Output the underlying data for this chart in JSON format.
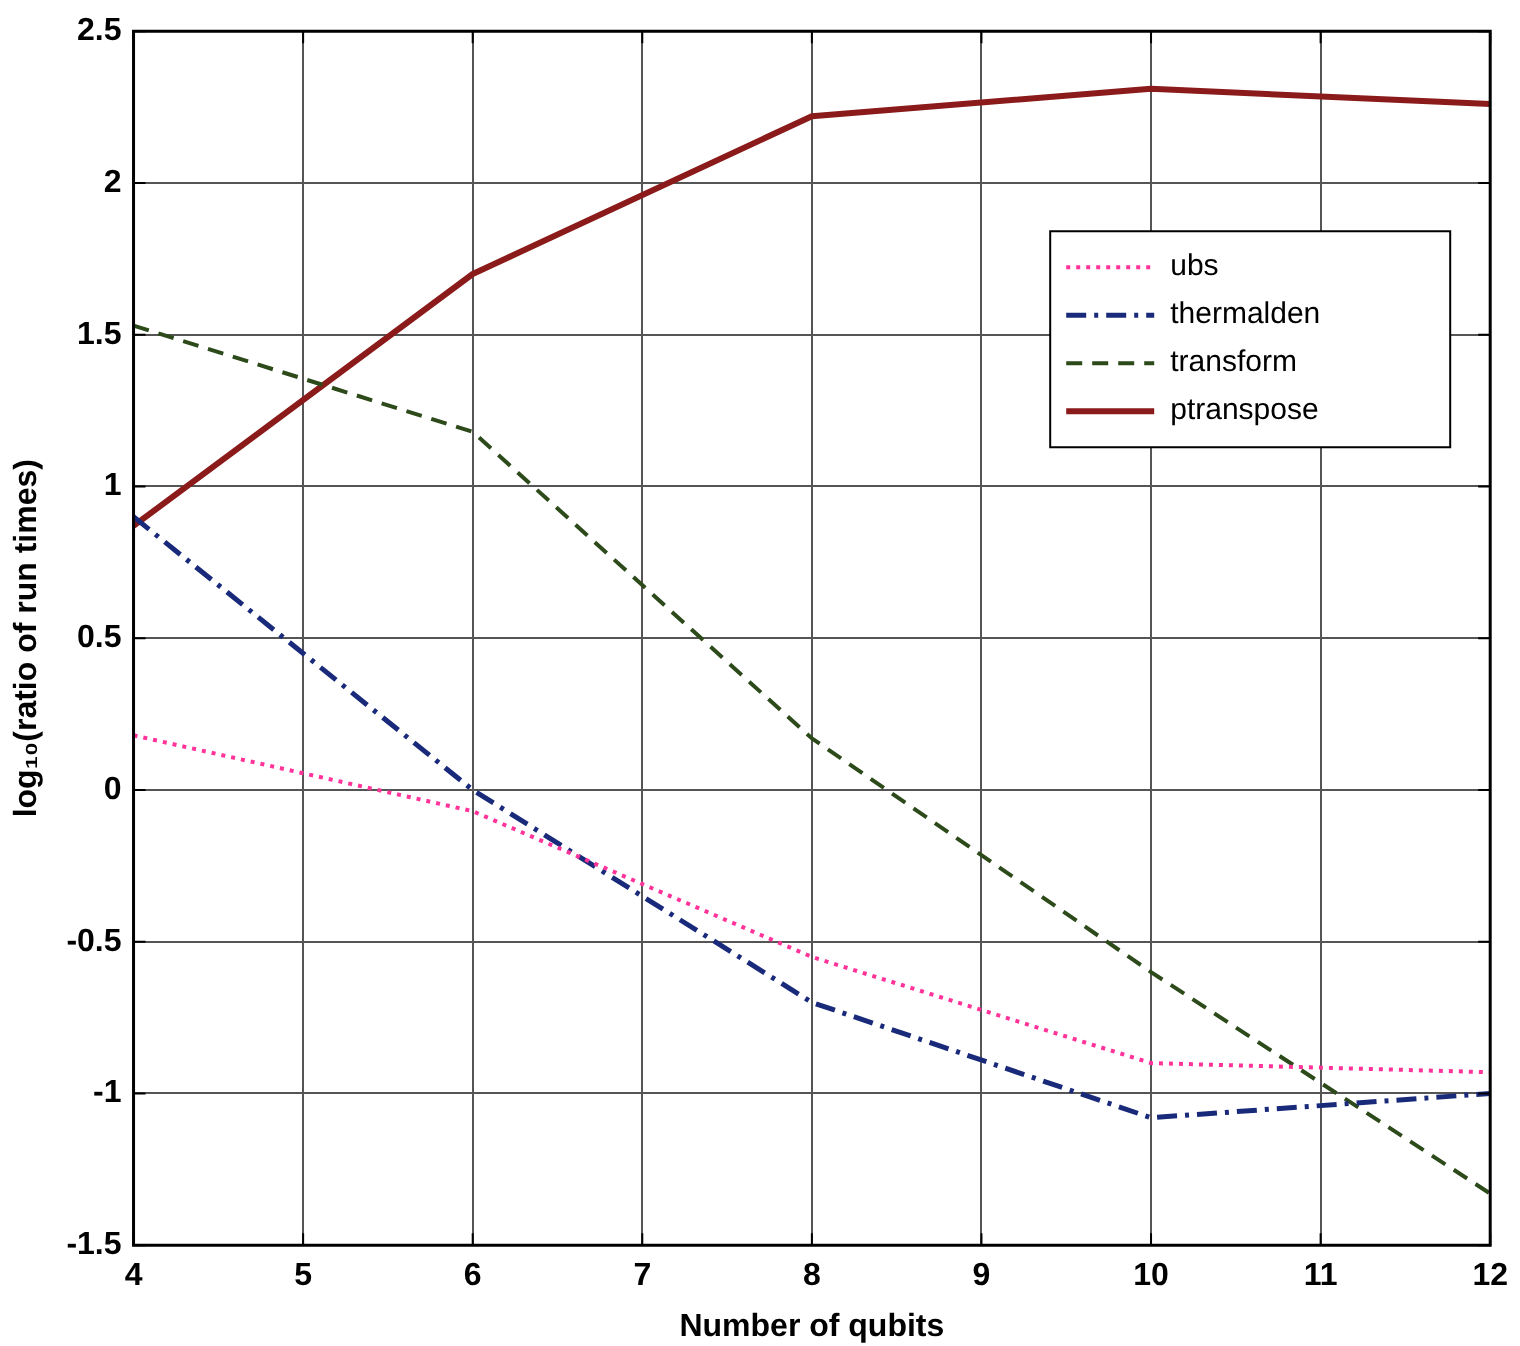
{
  "chart_data": {
    "type": "line",
    "xlabel": "Number of qubits",
    "ylabel": "log₁₀(ratio of run times)",
    "x": [
      4,
      6,
      8,
      10,
      12
    ],
    "series": [
      {
        "name": "ubs",
        "color": "#ff3399",
        "line_style": "dotted",
        "values": [
          0.18,
          -0.07,
          -0.55,
          -0.9,
          -0.93
        ]
      },
      {
        "name": "thermalden",
        "color": "#1a2a7a",
        "line_style": "dashdot",
        "values": [
          0.9,
          0.0,
          -0.7,
          -1.08,
          -1.0
        ]
      },
      {
        "name": "transform",
        "color": "#2d4a1a",
        "line_style": "dashed",
        "values": [
          1.53,
          1.18,
          0.17,
          -0.6,
          -1.33
        ]
      },
      {
        "name": "ptranspose",
        "color": "#8b1a1a",
        "line_style": "solid",
        "values": [
          0.87,
          1.7,
          2.22,
          2.31,
          2.26
        ]
      }
    ],
    "xlim": [
      4,
      12
    ],
    "xticks": [
      4,
      5,
      6,
      7,
      8,
      9,
      10,
      11,
      12
    ],
    "ylim": [
      -1.5,
      2.5
    ],
    "yticks": [
      -1.5,
      -1,
      -0.5,
      0,
      0.5,
      1,
      1.5,
      2,
      2.5
    ],
    "grid": true,
    "legend": "top right",
    "marker": "none"
  }
}
